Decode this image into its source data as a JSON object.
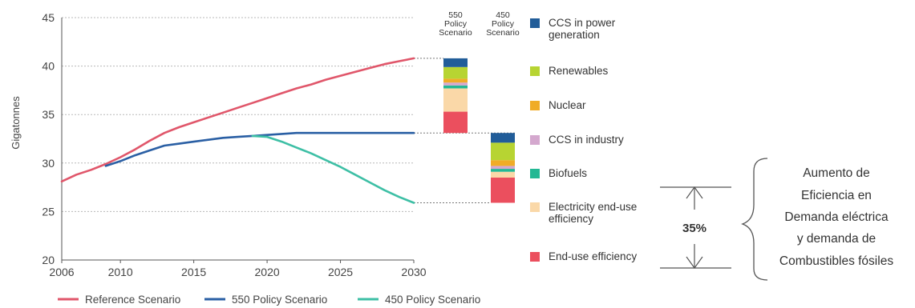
{
  "chart_data": {
    "type": "line",
    "ylabel": "Gigatonnes",
    "xlim": [
      2006,
      2030
    ],
    "ylim": [
      20,
      45
    ],
    "x_ticks": [
      "2006",
      "2010",
      "2015",
      "2020",
      "2025",
      "2030"
    ],
    "y_ticks": [
      "20",
      "25",
      "30",
      "35",
      "40",
      "45"
    ],
    "grid": true,
    "legend_position": "bottom",
    "series": [
      {
        "name": "Reference Scenario",
        "color": "#e0566a",
        "x": [
          2006,
          2007,
          2008,
          2009,
          2010,
          2011,
          2012,
          2013,
          2014,
          2015,
          2016,
          2017,
          2018,
          2019,
          2020,
          2021,
          2022,
          2023,
          2024,
          2025,
          2026,
          2027,
          2028,
          2029,
          2030
        ],
        "y": [
          28.1,
          28.8,
          29.3,
          29.9,
          30.6,
          31.4,
          32.3,
          33.1,
          33.7,
          34.2,
          34.7,
          35.2,
          35.7,
          36.2,
          36.7,
          37.2,
          37.7,
          38.1,
          38.6,
          39.0,
          39.4,
          39.8,
          40.2,
          40.5,
          40.8
        ]
      },
      {
        "name": "550 Policy Scenario",
        "color": "#2a5fa4",
        "x": [
          2009,
          2010,
          2011,
          2012,
          2013,
          2014,
          2015,
          2016,
          2017,
          2018,
          2019,
          2020,
          2021,
          2022,
          2023,
          2025,
          2027,
          2030
        ],
        "y": [
          29.7,
          30.2,
          30.8,
          31.3,
          31.8,
          32.0,
          32.2,
          32.4,
          32.6,
          32.7,
          32.8,
          32.9,
          33.0,
          33.1,
          33.1,
          33.1,
          33.1,
          33.1
        ]
      },
      {
        "name": "450 Policy Scenario",
        "color": "#3dbfa5",
        "x": [
          2019,
          2020,
          2021,
          2022,
          2023,
          2024,
          2025,
          2026,
          2027,
          2028,
          2029,
          2030
        ],
        "y": [
          32.8,
          32.7,
          32.2,
          31.6,
          31.0,
          30.3,
          29.6,
          28.8,
          28.0,
          27.2,
          26.5,
          25.9
        ]
      }
    ],
    "stacked_bars": [
      {
        "label": "550\nPolicy\nScenario",
        "from": 33.1,
        "to": 40.8,
        "segments": [
          {
            "name": "End-use efficiency",
            "value": 2.2
          },
          {
            "name": "Electricity end-use efficiency",
            "value": 2.4
          },
          {
            "name": "Biofuels",
            "value": 0.3
          },
          {
            "name": "CCS in industry",
            "value": 0.3
          },
          {
            "name": "Nuclear",
            "value": 0.4
          },
          {
            "name": "Renewables",
            "value": 1.2
          },
          {
            "name": "CCS in power generation",
            "value": 0.9
          }
        ]
      },
      {
        "label": "450\nPolicy\nScenario",
        "from": 25.9,
        "to": 33.1,
        "segments": [
          {
            "name": "End-use efficiency",
            "value": 2.6
          },
          {
            "name": "Electricity end-use efficiency",
            "value": 0.6
          },
          {
            "name": "Biofuels",
            "value": 0.3
          },
          {
            "name": "CCS in industry",
            "value": 0.3
          },
          {
            "name": "Nuclear",
            "value": 0.6
          },
          {
            "name": "Renewables",
            "value": 1.8
          },
          {
            "name": "CCS in power generation",
            "value": 1.0
          }
        ]
      }
    ],
    "legend_categories": [
      {
        "name": "CCS in power generation",
        "color": "#215d99"
      },
      {
        "name": "Renewables",
        "color": "#b7d432"
      },
      {
        "name": "Nuclear",
        "color": "#f0ac27"
      },
      {
        "name": "CCS in industry",
        "color": "#d4a8ce"
      },
      {
        "name": "Biofuels",
        "color": "#23b894"
      },
      {
        "name": "Electricity end-use efficiency",
        "color": "#fad8a8"
      },
      {
        "name": "End-use efficiency",
        "color": "#eb4f5e"
      }
    ],
    "annotation": {
      "percent": "35%",
      "text": [
        "Aumento de",
        "Eficiencia en",
        "Demanda eléctrica",
        "y demanda de",
        "Combustibles fósiles"
      ]
    }
  }
}
